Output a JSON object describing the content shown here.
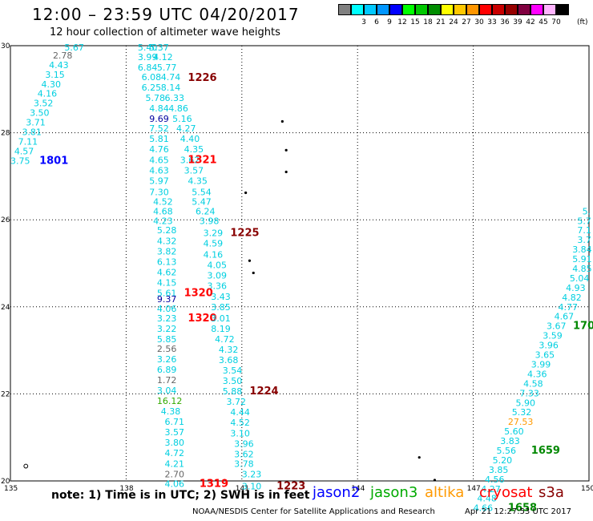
{
  "header": {
    "title": "12:00 – 23:59 UTC 04/20/2017",
    "subtitle": "12 hour collection of altimeter wave heights"
  },
  "scale": {
    "units": "(ft)",
    "bins": [
      {
        "label": "",
        "color": "#808080"
      },
      {
        "label": "3",
        "color": "#00ffff"
      },
      {
        "label": "6",
        "color": "#00c8ff"
      },
      {
        "label": "9",
        "color": "#0096ff"
      },
      {
        "label": "12",
        "color": "#0000ff"
      },
      {
        "label": "15",
        "color": "#00ff00"
      },
      {
        "label": "18",
        "color": "#00c800"
      },
      {
        "label": "21",
        "color": "#008c00"
      },
      {
        "label": "24",
        "color": "#ffff00"
      },
      {
        "label": "27",
        "color": "#ffc800"
      },
      {
        "label": "30",
        "color": "#ff9600"
      },
      {
        "label": "33",
        "color": "#ff0000"
      },
      {
        "label": "36",
        "color": "#c80000"
      },
      {
        "label": "39",
        "color": "#960000"
      },
      {
        "label": "42",
        "color": "#800040"
      },
      {
        "label": "45",
        "color": "#ff00ff"
      },
      {
        "label": "70",
        "color": "#ffb4ff"
      },
      {
        "label": "",
        "color": "#000000"
      }
    ]
  },
  "map": {
    "lon_range": [
      135,
      150
    ],
    "lat_range": [
      20,
      30
    ],
    "lon_ticks": [
      "135",
      "138",
      "141",
      "144",
      "147",
      "150"
    ],
    "lat_ticks": [
      "30",
      "28",
      "26",
      "24",
      "22",
      "20"
    ],
    "colors": {
      "cyan": "#00cfe0",
      "gray": "#666666",
      "navy": "#0000a0",
      "green": "#008800",
      "lime": "#33aa00",
      "orange": "#ff9900",
      "red": "#ff0000",
      "darkred": "#880000",
      "blue": "#0000ff"
    },
    "readings": [
      {
        "lon": 136.4,
        "lat": 29.96,
        "v": "5.67",
        "c": "cyan"
      },
      {
        "lon": 136.1,
        "lat": 29.78,
        "v": "2.78",
        "c": "gray"
      },
      {
        "lon": 136.0,
        "lat": 29.56,
        "v": "4.43",
        "c": "cyan"
      },
      {
        "lon": 135.9,
        "lat": 29.34,
        "v": "3.15",
        "c": "cyan"
      },
      {
        "lon": 135.8,
        "lat": 29.12,
        "v": "4.30",
        "c": "cyan"
      },
      {
        "lon": 135.7,
        "lat": 28.9,
        "v": "4.16",
        "c": "cyan"
      },
      {
        "lon": 135.6,
        "lat": 28.68,
        "v": "3.52",
        "c": "cyan"
      },
      {
        "lon": 135.5,
        "lat": 28.46,
        "v": "3.50",
        "c": "cyan"
      },
      {
        "lon": 135.4,
        "lat": 28.24,
        "v": "3.71",
        "c": "cyan"
      },
      {
        "lon": 135.3,
        "lat": 28.02,
        "v": "3.81",
        "c": "cyan"
      },
      {
        "lon": 135.2,
        "lat": 27.8,
        "v": "7.11",
        "c": "cyan"
      },
      {
        "lon": 135.1,
        "lat": 27.58,
        "v": "4.57",
        "c": "cyan"
      },
      {
        "lon": 135.0,
        "lat": 27.36,
        "v": "3.75",
        "c": "cyan"
      },
      {
        "lon": 135.75,
        "lat": 27.36,
        "v": "1801",
        "c": "blue",
        "b": 1
      },
      {
        "lon": 138.3,
        "lat": 29.96,
        "v": "5.40",
        "c": "cyan"
      },
      {
        "lon": 138.6,
        "lat": 29.96,
        "v": "5.37",
        "c": "cyan"
      },
      {
        "lon": 138.3,
        "lat": 29.74,
        "v": "3.99",
        "c": "cyan"
      },
      {
        "lon": 138.7,
        "lat": 29.74,
        "v": "4.12",
        "c": "cyan"
      },
      {
        "lon": 138.3,
        "lat": 29.5,
        "v": "6.84",
        "c": "cyan"
      },
      {
        "lon": 138.8,
        "lat": 29.5,
        "v": "5.77",
        "c": "cyan"
      },
      {
        "lon": 138.4,
        "lat": 29.28,
        "v": "6.08",
        "c": "cyan"
      },
      {
        "lon": 138.9,
        "lat": 29.28,
        "v": "4.74",
        "c": "cyan"
      },
      {
        "lon": 139.6,
        "lat": 29.26,
        "v": "1226",
        "c": "darkred",
        "b": 1
      },
      {
        "lon": 138.4,
        "lat": 29.04,
        "v": "6.25",
        "c": "cyan"
      },
      {
        "lon": 138.9,
        "lat": 29.04,
        "v": "8.14",
        "c": "cyan"
      },
      {
        "lon": 138.5,
        "lat": 28.8,
        "v": "5.78",
        "c": "cyan"
      },
      {
        "lon": 139.0,
        "lat": 28.8,
        "v": "6.33",
        "c": "cyan"
      },
      {
        "lon": 138.6,
        "lat": 28.56,
        "v": "4.84",
        "c": "cyan"
      },
      {
        "lon": 139.1,
        "lat": 28.56,
        "v": "4.86",
        "c": "cyan"
      },
      {
        "lon": 138.6,
        "lat": 28.32,
        "v": "9.69",
        "c": "navy"
      },
      {
        "lon": 139.2,
        "lat": 28.32,
        "v": "5.16",
        "c": "cyan"
      },
      {
        "lon": 138.6,
        "lat": 28.1,
        "v": "7.52",
        "c": "cyan"
      },
      {
        "lon": 139.3,
        "lat": 28.1,
        "v": "4.27",
        "c": "cyan"
      },
      {
        "lon": 138.6,
        "lat": 27.86,
        "v": "5.81",
        "c": "cyan"
      },
      {
        "lon": 139.4,
        "lat": 27.86,
        "v": "4.40",
        "c": "cyan"
      },
      {
        "lon": 138.6,
        "lat": 27.62,
        "v": "4.76",
        "c": "cyan"
      },
      {
        "lon": 139.5,
        "lat": 27.62,
        "v": "4.35",
        "c": "cyan"
      },
      {
        "lon": 138.6,
        "lat": 27.38,
        "v": "4.65",
        "c": "cyan"
      },
      {
        "lon": 139.4,
        "lat": 27.38,
        "v": "3.62",
        "c": "cyan"
      },
      {
        "lon": 139.6,
        "lat": 27.38,
        "v": "1321",
        "c": "red",
        "b": 1
      },
      {
        "lon": 138.6,
        "lat": 27.14,
        "v": "4.63",
        "c": "cyan"
      },
      {
        "lon": 139.5,
        "lat": 27.14,
        "v": "3.57",
        "c": "cyan"
      },
      {
        "lon": 138.6,
        "lat": 26.9,
        "v": "5.97",
        "c": "cyan"
      },
      {
        "lon": 139.6,
        "lat": 26.9,
        "v": "4.35",
        "c": "cyan"
      },
      {
        "lon": 138.6,
        "lat": 26.64,
        "v": "7.30",
        "c": "cyan"
      },
      {
        "lon": 139.7,
        "lat": 26.64,
        "v": "5.54",
        "c": "cyan"
      },
      {
        "lon": 138.7,
        "lat": 26.42,
        "v": "4.52",
        "c": "cyan"
      },
      {
        "lon": 139.7,
        "lat": 26.42,
        "v": "5.47",
        "c": "cyan"
      },
      {
        "lon": 138.7,
        "lat": 26.2,
        "v": "4.68",
        "c": "cyan"
      },
      {
        "lon": 139.8,
        "lat": 26.2,
        "v": "6.24",
        "c": "cyan"
      },
      {
        "lon": 138.7,
        "lat": 25.98,
        "v": "4.23",
        "c": "cyan"
      },
      {
        "lon": 139.9,
        "lat": 25.98,
        "v": "3.98",
        "c": "cyan"
      },
      {
        "lon": 138.8,
        "lat": 25.76,
        "v": "5.28",
        "c": "cyan"
      },
      {
        "lon": 140.0,
        "lat": 25.7,
        "v": "3.29",
        "c": "cyan"
      },
      {
        "lon": 140.7,
        "lat": 25.7,
        "v": "1225",
        "c": "darkred",
        "b": 1
      },
      {
        "lon": 138.8,
        "lat": 25.52,
        "v": "4.32",
        "c": "cyan"
      },
      {
        "lon": 140.0,
        "lat": 25.46,
        "v": "4.59",
        "c": "cyan"
      },
      {
        "lon": 138.8,
        "lat": 25.28,
        "v": "3.82",
        "c": "cyan"
      },
      {
        "lon": 140.0,
        "lat": 25.2,
        "v": "4.16",
        "c": "cyan"
      },
      {
        "lon": 138.8,
        "lat": 25.04,
        "v": "6.13",
        "c": "cyan"
      },
      {
        "lon": 140.1,
        "lat": 24.96,
        "v": "4.05",
        "c": "cyan"
      },
      {
        "lon": 138.8,
        "lat": 24.8,
        "v": "4.62",
        "c": "cyan"
      },
      {
        "lon": 140.1,
        "lat": 24.72,
        "v": "3.09",
        "c": "cyan"
      },
      {
        "lon": 138.8,
        "lat": 24.56,
        "v": "4.15",
        "c": "cyan"
      },
      {
        "lon": 140.1,
        "lat": 24.48,
        "v": "3.36",
        "c": "cyan"
      },
      {
        "lon": 138.8,
        "lat": 24.32,
        "v": "5.61",
        "c": "cyan"
      },
      {
        "lon": 139.5,
        "lat": 24.32,
        "v": "1320",
        "c": "red",
        "b": 1
      },
      {
        "lon": 138.8,
        "lat": 24.18,
        "v": "9.37",
        "c": "navy"
      },
      {
        "lon": 140.2,
        "lat": 24.24,
        "v": "3.43",
        "c": "cyan"
      },
      {
        "lon": 138.8,
        "lat": 23.96,
        "v": "4.06",
        "c": "cyan"
      },
      {
        "lon": 140.2,
        "lat": 24.0,
        "v": "3.85",
        "c": "cyan"
      },
      {
        "lon": 138.8,
        "lat": 23.74,
        "v": "3.23",
        "c": "cyan"
      },
      {
        "lon": 139.6,
        "lat": 23.74,
        "v": "1320",
        "c": "red",
        "b": 1
      },
      {
        "lon": 140.2,
        "lat": 23.74,
        "v": "3.01",
        "c": "cyan"
      },
      {
        "lon": 138.8,
        "lat": 23.5,
        "v": "3.22",
        "c": "cyan"
      },
      {
        "lon": 140.2,
        "lat": 23.5,
        "v": "8.19",
        "c": "cyan"
      },
      {
        "lon": 138.8,
        "lat": 23.26,
        "v": "5.85",
        "c": "cyan"
      },
      {
        "lon": 140.3,
        "lat": 23.26,
        "v": "4.72",
        "c": "cyan"
      },
      {
        "lon": 138.8,
        "lat": 23.04,
        "v": "2.56",
        "c": "gray"
      },
      {
        "lon": 140.4,
        "lat": 23.02,
        "v": "4.32",
        "c": "cyan"
      },
      {
        "lon": 138.8,
        "lat": 22.8,
        "v": "3.26",
        "c": "cyan"
      },
      {
        "lon": 140.4,
        "lat": 22.78,
        "v": "3.68",
        "c": "cyan"
      },
      {
        "lon": 138.8,
        "lat": 22.56,
        "v": "6.89",
        "c": "cyan"
      },
      {
        "lon": 140.5,
        "lat": 22.54,
        "v": "3.54",
        "c": "cyan"
      },
      {
        "lon": 138.8,
        "lat": 22.32,
        "v": "1.72",
        "c": "gray"
      },
      {
        "lon": 140.5,
        "lat": 22.3,
        "v": "3.50",
        "c": "cyan"
      },
      {
        "lon": 138.8,
        "lat": 22.08,
        "v": "3.04",
        "c": "cyan"
      },
      {
        "lon": 140.5,
        "lat": 22.06,
        "v": "5.88",
        "c": "cyan"
      },
      {
        "lon": 141.2,
        "lat": 22.06,
        "v": "1224",
        "c": "darkred",
        "b": 1
      },
      {
        "lon": 138.8,
        "lat": 21.84,
        "v": "16.12",
        "c": "lime"
      },
      {
        "lon": 140.6,
        "lat": 21.82,
        "v": "3.72",
        "c": "cyan"
      },
      {
        "lon": 138.9,
        "lat": 21.6,
        "v": "4.38",
        "c": "cyan"
      },
      {
        "lon": 140.7,
        "lat": 21.58,
        "v": "4.44",
        "c": "cyan"
      },
      {
        "lon": 139.0,
        "lat": 21.36,
        "v": "6.71",
        "c": "cyan"
      },
      {
        "lon": 140.7,
        "lat": 21.34,
        "v": "4.52",
        "c": "cyan"
      },
      {
        "lon": 139.0,
        "lat": 21.12,
        "v": "3.57",
        "c": "cyan"
      },
      {
        "lon": 140.7,
        "lat": 21.1,
        "v": "3.10",
        "c": "cyan"
      },
      {
        "lon": 139.0,
        "lat": 20.88,
        "v": "3.80",
        "c": "cyan"
      },
      {
        "lon": 140.8,
        "lat": 20.86,
        "v": "3.96",
        "c": "cyan"
      },
      {
        "lon": 139.0,
        "lat": 20.64,
        "v": "4.72",
        "c": "cyan"
      },
      {
        "lon": 140.8,
        "lat": 20.62,
        "v": "3.62",
        "c": "cyan"
      },
      {
        "lon": 139.0,
        "lat": 20.4,
        "v": "4.21",
        "c": "cyan"
      },
      {
        "lon": 140.8,
        "lat": 20.4,
        "v": "3.78",
        "c": "cyan"
      },
      {
        "lon": 139.0,
        "lat": 20.16,
        "v": "2.70",
        "c": "gray"
      },
      {
        "lon": 141.0,
        "lat": 20.16,
        "v": "3.23",
        "c": "cyan"
      },
      {
        "lon": 139.0,
        "lat": 19.94,
        "v": "4.06",
        "c": "cyan"
      },
      {
        "lon": 139.9,
        "lat": 19.94,
        "v": "1319",
        "c": "red",
        "b": 1
      },
      {
        "lon": 141.0,
        "lat": 19.88,
        "v": "3.10",
        "c": "cyan"
      },
      {
        "lon": 141.9,
        "lat": 19.88,
        "v": "1223",
        "c": "darkred",
        "b": 1
      },
      {
        "lon": 150.05,
        "lat": 26.2,
        "v": "5.",
        "c": "cyan"
      },
      {
        "lon": 150.0,
        "lat": 25.98,
        "v": "5.7",
        "c": "cyan"
      },
      {
        "lon": 150.0,
        "lat": 25.76,
        "v": "7.1",
        "c": "cyan"
      },
      {
        "lon": 149.95,
        "lat": 25.54,
        "v": "3.7",
        "c": "cyan"
      },
      {
        "lon": 149.8,
        "lat": 25.32,
        "v": "3.84",
        "c": "cyan"
      },
      {
        "lon": 149.7,
        "lat": 25.1,
        "v": "5.91",
        "c": "cyan"
      },
      {
        "lon": 149.6,
        "lat": 24.88,
        "v": "4.85",
        "c": "cyan"
      },
      {
        "lon": 149.5,
        "lat": 24.66,
        "v": "5.04",
        "c": "cyan"
      },
      {
        "lon": 149.4,
        "lat": 24.44,
        "v": "4.93",
        "c": "cyan"
      },
      {
        "lon": 149.3,
        "lat": 24.22,
        "v": "4.82",
        "c": "cyan"
      },
      {
        "lon": 149.2,
        "lat": 24.0,
        "v": "4.77",
        "c": "cyan"
      },
      {
        "lon": 149.1,
        "lat": 23.78,
        "v": "4.67",
        "c": "cyan"
      },
      {
        "lon": 149.75,
        "lat": 23.56,
        "v": "170",
        "c": "green",
        "b": 1
      },
      {
        "lon": 148.9,
        "lat": 23.56,
        "v": "3.67",
        "c": "cyan"
      },
      {
        "lon": 148.8,
        "lat": 23.34,
        "v": "3.59",
        "c": "cyan"
      },
      {
        "lon": 148.7,
        "lat": 23.12,
        "v": "3.96",
        "c": "cyan"
      },
      {
        "lon": 148.6,
        "lat": 22.9,
        "v": "3.65",
        "c": "cyan"
      },
      {
        "lon": 148.5,
        "lat": 22.68,
        "v": "3.99",
        "c": "cyan"
      },
      {
        "lon": 148.4,
        "lat": 22.46,
        "v": "4.36",
        "c": "cyan"
      },
      {
        "lon": 148.3,
        "lat": 22.24,
        "v": "4.58",
        "c": "cyan"
      },
      {
        "lon": 148.2,
        "lat": 22.02,
        "v": "7.33",
        "c": "cyan"
      },
      {
        "lon": 148.1,
        "lat": 21.8,
        "v": "5.90",
        "c": "cyan"
      },
      {
        "lon": 148.0,
        "lat": 21.58,
        "v": "5.32",
        "c": "cyan"
      },
      {
        "lon": 147.9,
        "lat": 21.36,
        "v": "27.53",
        "c": "orange"
      },
      {
        "lon": 147.8,
        "lat": 21.14,
        "v": "5.60",
        "c": "cyan"
      },
      {
        "lon": 147.7,
        "lat": 20.92,
        "v": "3.83",
        "c": "cyan"
      },
      {
        "lon": 147.6,
        "lat": 20.7,
        "v": "5.56",
        "c": "cyan"
      },
      {
        "lon": 148.5,
        "lat": 20.7,
        "v": "1659",
        "c": "green",
        "b": 1
      },
      {
        "lon": 147.5,
        "lat": 20.48,
        "v": "5.20",
        "c": "cyan"
      },
      {
        "lon": 147.4,
        "lat": 20.26,
        "v": "3.85",
        "c": "cyan"
      },
      {
        "lon": 147.3,
        "lat": 20.04,
        "v": "4.56",
        "c": "cyan"
      },
      {
        "lon": 147.2,
        "lat": 19.82,
        "v": "4.27",
        "c": "cyan"
      },
      {
        "lon": 147.1,
        "lat": 19.6,
        "v": "4.48",
        "c": "cyan"
      },
      {
        "lon": 147.0,
        "lat": 19.38,
        "v": "4.66",
        "c": "cyan"
      },
      {
        "lon": 147.9,
        "lat": 19.38,
        "v": "1658",
        "c": "green",
        "b": 1
      }
    ],
    "islands": [
      {
        "lon": 142.05,
        "lat": 28.26
      },
      {
        "lon": 142.15,
        "lat": 27.6
      },
      {
        "lon": 142.15,
        "lat": 27.1
      },
      {
        "lon": 141.1,
        "lat": 26.62
      },
      {
        "lon": 141.2,
        "lat": 25.06
      },
      {
        "lon": 141.3,
        "lat": 24.78
      },
      {
        "lon": 145.6,
        "lat": 20.54
      },
      {
        "lon": 146.0,
        "lat": 20.02
      }
    ],
    "rings": [
      {
        "lon": 135.4,
        "lat": 20.34
      }
    ]
  },
  "legend": {
    "note": "note:  1) Time is in UTC;  2) SWH is in feet",
    "satellites": [
      {
        "name": "jason2",
        "color": "#0000ff"
      },
      {
        "name": "jason3",
        "color": "#00aa00"
      },
      {
        "name": "altika",
        "color": "#ff9900"
      },
      {
        "name": "cryosat",
        "color": "#ff0000"
      },
      {
        "name": "s3a",
        "color": "#880000"
      }
    ]
  },
  "footer": {
    "center": "NOAA/NESDIS Center for Satellite Applications and Research",
    "date": "Apr 21 12:27:53 UTC 2017"
  }
}
